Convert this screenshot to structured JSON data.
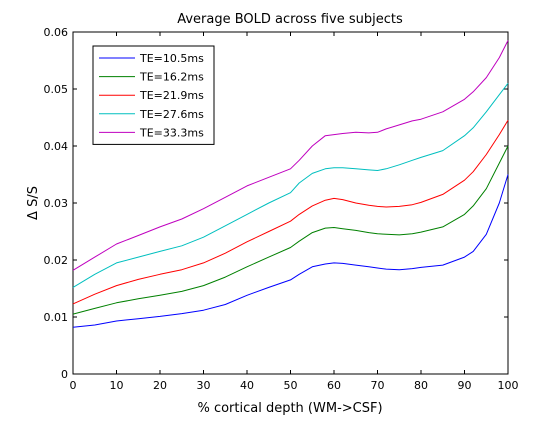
{
  "chart_data": {
    "type": "line",
    "title": "Average BOLD across five subjects",
    "xlabel": "% cortical depth (WM->CSF)",
    "ylabel": "Δ S/S",
    "xlim": [
      0,
      100
    ],
    "ylim": [
      0,
      0.06
    ],
    "xticks": [
      0,
      10,
      20,
      30,
      40,
      50,
      60,
      70,
      80,
      90,
      100
    ],
    "yticks": [
      0,
      0.01,
      0.02,
      0.03,
      0.04,
      0.05,
      0.06
    ],
    "xtick_labels": [
      "0",
      "10",
      "20",
      "30",
      "40",
      "50",
      "60",
      "70",
      "80",
      "90",
      "100"
    ],
    "ytick_labels": [
      "0",
      "0.01",
      "0.02",
      "0.03",
      "0.04",
      "0.05",
      "0.06"
    ],
    "grid": false,
    "legend_position": "top-left",
    "x": [
      0,
      5,
      10,
      15,
      20,
      25,
      30,
      35,
      40,
      45,
      50,
      52,
      55,
      58,
      60,
      62,
      65,
      68,
      70,
      72,
      75,
      78,
      80,
      85,
      90,
      92,
      95,
      98,
      100
    ],
    "series": [
      {
        "name": "TE=10.5ms",
        "color": "#0000ff",
        "values": [
          0.0082,
          0.0086,
          0.0093,
          0.0097,
          0.0101,
          0.0106,
          0.0112,
          0.0122,
          0.0138,
          0.0152,
          0.0165,
          0.0175,
          0.0188,
          0.0193,
          0.0195,
          0.0194,
          0.0191,
          0.0188,
          0.0186,
          0.0184,
          0.0183,
          0.0185,
          0.0187,
          0.0191,
          0.0205,
          0.0215,
          0.0245,
          0.03,
          0.035
        ]
      },
      {
        "name": "TE=16.2ms",
        "color": "#008000",
        "values": [
          0.0105,
          0.0115,
          0.0125,
          0.0132,
          0.0138,
          0.0145,
          0.0155,
          0.017,
          0.0188,
          0.0205,
          0.0222,
          0.0233,
          0.0248,
          0.0256,
          0.0257,
          0.0255,
          0.0252,
          0.0248,
          0.0246,
          0.0245,
          0.0244,
          0.0246,
          0.0249,
          0.0258,
          0.028,
          0.0295,
          0.0325,
          0.037,
          0.04
        ]
      },
      {
        "name": "TE=21.9ms",
        "color": "#ff0000",
        "values": [
          0.0123,
          0.014,
          0.0155,
          0.0166,
          0.0175,
          0.0183,
          0.0195,
          0.0212,
          0.0232,
          0.025,
          0.0268,
          0.028,
          0.0295,
          0.0305,
          0.0308,
          0.0306,
          0.03,
          0.0296,
          0.0294,
          0.0293,
          0.0294,
          0.0297,
          0.0301,
          0.0315,
          0.034,
          0.0355,
          0.0385,
          0.042,
          0.0445
        ]
      },
      {
        "name": "TE=27.6ms",
        "color": "#00bfbf",
        "values": [
          0.0152,
          0.0175,
          0.0195,
          0.0205,
          0.0215,
          0.0225,
          0.024,
          0.026,
          0.028,
          0.03,
          0.0318,
          0.0335,
          0.0352,
          0.036,
          0.0362,
          0.0362,
          0.036,
          0.0358,
          0.0357,
          0.036,
          0.0367,
          0.0375,
          0.038,
          0.0392,
          0.0418,
          0.0432,
          0.046,
          0.049,
          0.051
        ]
      },
      {
        "name": "TE=33.3ms",
        "color": "#bf00bf",
        "values": [
          0.0182,
          0.0205,
          0.0228,
          0.0243,
          0.0258,
          0.0272,
          0.029,
          0.031,
          0.033,
          0.0345,
          0.036,
          0.0375,
          0.04,
          0.0418,
          0.042,
          0.0422,
          0.0424,
          0.0423,
          0.0424,
          0.043,
          0.0437,
          0.0444,
          0.0447,
          0.046,
          0.0482,
          0.0495,
          0.052,
          0.0555,
          0.0585
        ]
      }
    ]
  }
}
